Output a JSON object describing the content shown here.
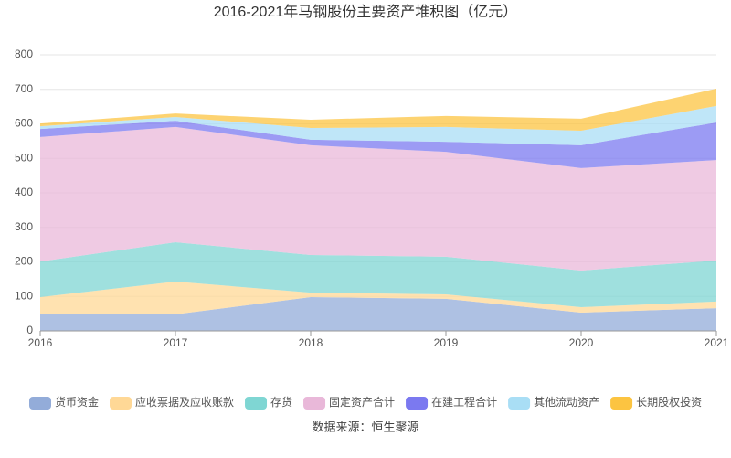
{
  "chart_data": {
    "type": "stacked-area",
    "title": "2016-2021年马钢股份主要资产堆积图（亿元）",
    "source": "数据来源：恒生聚源",
    "categories": [
      "2016",
      "2017",
      "2018",
      "2019",
      "2020",
      "2021"
    ],
    "ylim": [
      0,
      800
    ],
    "yticks": [
      0,
      100,
      200,
      300,
      400,
      500,
      600,
      700,
      800
    ],
    "grid": true,
    "legend": "bottom",
    "series": [
      {
        "name": "货币资金",
        "color": "#93acd9",
        "values": [
          50,
          48,
          98,
          93,
          53,
          66
        ]
      },
      {
        "name": "应收票据及应收账款",
        "color": "#ffd896",
        "values": [
          48,
          95,
          13,
          13,
          16,
          19
        ]
      },
      {
        "name": "存货",
        "color": "#7fd6d3",
        "values": [
          103,
          114,
          109,
          109,
          106,
          119
        ]
      },
      {
        "name": "固定资产合计",
        "color": "#e9b8d9",
        "values": [
          361,
          334,
          318,
          304,
          297,
          291
        ]
      },
      {
        "name": "在建工程合计",
        "color": "#7b79f0",
        "values": [
          23,
          18,
          16,
          29,
          66,
          109
        ]
      },
      {
        "name": "其他流动资产",
        "color": "#a9def5",
        "values": [
          8,
          11,
          34,
          43,
          42,
          48
        ]
      },
      {
        "name": "长期股权投资",
        "color": "#fcc441",
        "values": [
          8,
          10,
          24,
          32,
          35,
          50
        ]
      }
    ]
  }
}
